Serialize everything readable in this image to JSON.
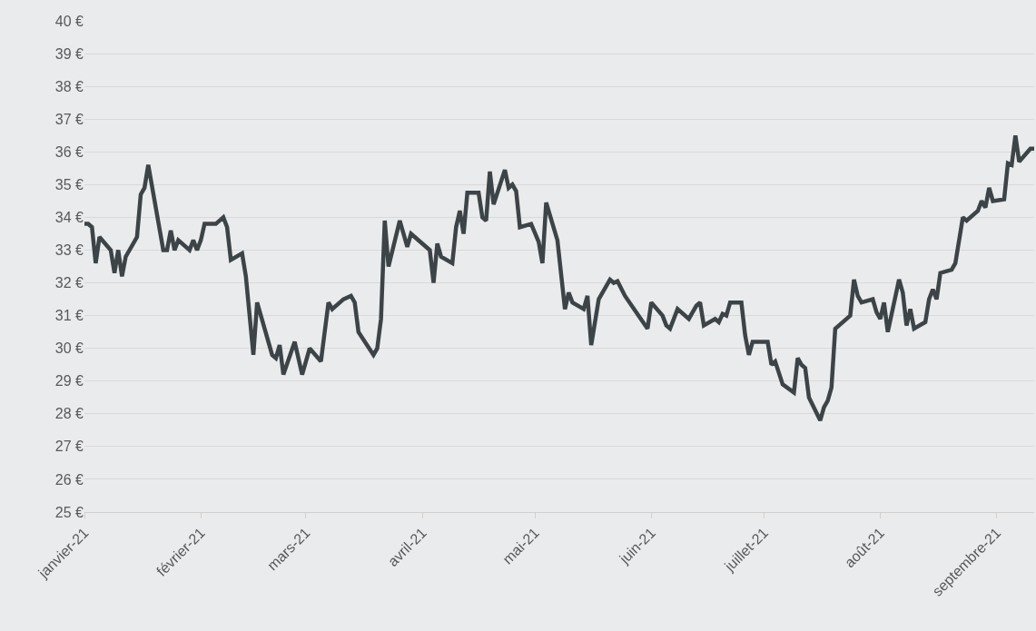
{
  "chart_data": {
    "type": "line",
    "x": [
      "2021-01-01",
      "2021-01-02",
      "2021-01-03",
      "2021-01-04",
      "2021-01-05",
      "2021-01-08",
      "2021-01-09",
      "2021-01-10",
      "2021-01-11",
      "2021-01-12",
      "2021-01-15",
      "2021-01-16",
      "2021-01-17",
      "2021-01-18",
      "2021-01-22",
      "2021-01-23",
      "2021-01-24",
      "2021-01-25",
      "2021-01-26",
      "2021-01-29",
      "2021-01-30",
      "2021-01-31",
      "2021-02-01",
      "2021-02-02",
      "2021-02-05",
      "2021-02-07",
      "2021-02-08",
      "2021-02-09",
      "2021-02-12",
      "2021-02-13",
      "2021-02-15",
      "2021-02-16",
      "2021-02-20",
      "2021-02-21",
      "2021-02-22",
      "2021-02-23",
      "2021-02-26",
      "2021-02-28",
      "2021-03-02",
      "2021-03-05",
      "2021-03-07",
      "2021-03-08",
      "2021-03-11",
      "2021-03-13",
      "2021-03-14",
      "2021-03-15",
      "2021-03-19",
      "2021-03-20",
      "2021-03-21",
      "2021-03-22",
      "2021-03-23",
      "2021-03-26",
      "2021-03-28",
      "2021-03-29",
      "2021-04-03",
      "2021-04-04",
      "2021-04-05",
      "2021-04-06",
      "2021-04-09",
      "2021-04-10",
      "2021-04-11",
      "2021-04-12",
      "2021-04-13",
      "2021-04-16",
      "2021-04-17",
      "2021-04-18",
      "2021-04-19",
      "2021-04-20",
      "2021-04-23",
      "2021-04-24",
      "2021-04-25",
      "2021-04-26",
      "2021-04-27",
      "2021-04-30",
      "2021-05-02",
      "2021-05-03",
      "2021-05-04",
      "2021-05-07",
      "2021-05-09",
      "2021-05-10",
      "2021-05-11",
      "2021-05-14",
      "2021-05-15",
      "2021-05-16",
      "2021-05-18",
      "2021-05-21",
      "2021-05-22",
      "2021-05-23",
      "2021-05-25",
      "2021-05-28",
      "2021-05-31",
      "2021-06-01",
      "2021-06-04",
      "2021-06-05",
      "2021-06-06",
      "2021-06-08",
      "2021-06-11",
      "2021-06-13",
      "2021-06-14",
      "2021-06-15",
      "2021-06-18",
      "2021-06-19",
      "2021-06-20",
      "2021-06-21",
      "2021-06-22",
      "2021-06-25",
      "2021-06-26",
      "2021-06-27",
      "2021-06-28",
      "2021-07-02",
      "2021-07-03",
      "2021-07-04",
      "2021-07-06",
      "2021-07-09",
      "2021-07-10",
      "2021-07-11",
      "2021-07-12",
      "2021-07-13",
      "2021-07-16",
      "2021-07-17",
      "2021-07-18",
      "2021-07-19",
      "2021-07-20",
      "2021-07-24",
      "2021-07-25",
      "2021-07-26",
      "2021-07-27",
      "2021-07-30",
      "2021-07-31",
      "2021-08-01",
      "2021-08-02",
      "2021-08-03",
      "2021-08-06",
      "2021-08-07",
      "2021-08-08",
      "2021-08-09",
      "2021-08-10",
      "2021-08-13",
      "2021-08-14",
      "2021-08-15",
      "2021-08-16",
      "2021-08-17",
      "2021-08-20",
      "2021-08-21",
      "2021-08-23",
      "2021-08-24",
      "2021-08-27",
      "2021-08-28",
      "2021-08-29",
      "2021-08-30",
      "2021-08-31",
      "2021-09-03",
      "2021-09-04",
      "2021-09-05",
      "2021-09-06",
      "2021-09-07",
      "2021-09-10",
      "2021-09-11"
    ],
    "series": [
      {
        "color": "#3d4447",
        "values": [
          33.8,
          33.8,
          33.7,
          32.6,
          33.4,
          33.0,
          32.3,
          33.0,
          32.2,
          32.8,
          33.4,
          34.7,
          34.9,
          35.6,
          33.0,
          33.0,
          33.6,
          33.0,
          33.3,
          33.0,
          33.3,
          33.0,
          33.3,
          33.8,
          33.8,
          34.0,
          33.7,
          32.7,
          32.9,
          32.2,
          29.8,
          31.4,
          29.8,
          29.7,
          30.1,
          29.2,
          30.2,
          29.2,
          30.0,
          29.6,
          31.4,
          31.2,
          31.5,
          31.6,
          31.4,
          30.5,
          29.8,
          30.0,
          30.9,
          33.9,
          32.5,
          33.9,
          33.1,
          33.5,
          33.0,
          32.0,
          33.2,
          32.8,
          32.6,
          33.7,
          34.2,
          33.5,
          34.75,
          34.75,
          34.0,
          33.9,
          35.4,
          34.4,
          35.45,
          34.9,
          35.0,
          34.8,
          33.7,
          33.8,
          33.25,
          32.6,
          34.45,
          33.3,
          31.2,
          31.7,
          31.4,
          31.2,
          31.6,
          30.1,
          31.5,
          32.1,
          32.0,
          32.05,
          31.6,
          31.1,
          30.6,
          31.4,
          31.0,
          30.7,
          30.6,
          31.2,
          30.9,
          31.3,
          31.4,
          30.7,
          30.9,
          30.8,
          31.05,
          31.0,
          31.4,
          31.4,
          30.4,
          29.8,
          30.2,
          30.2,
          29.5,
          29.6,
          28.9,
          28.65,
          29.7,
          29.5,
          29.4,
          28.5,
          27.8,
          28.2,
          28.4,
          28.8,
          30.6,
          31.0,
          32.1,
          31.6,
          31.4,
          31.5,
          31.1,
          30.9,
          31.4,
          30.5,
          32.1,
          31.7,
          30.7,
          31.2,
          30.6,
          30.8,
          31.5,
          31.8,
          31.5,
          32.3,
          32.4,
          32.6,
          34.0,
          33.9,
          34.2,
          34.5,
          34.3,
          34.9,
          34.5,
          34.55,
          35.65,
          35.6,
          36.5,
          35.7,
          36.1,
          36.1
        ]
      }
    ],
    "xlim": [
      "2021-01-01",
      "2021-09-11"
    ],
    "xticks": [
      {
        "value": "2021-01-01",
        "label": "janvier-21"
      },
      {
        "value": "2021-02-01",
        "label": "février-21"
      },
      {
        "value": "2021-03-01",
        "label": "mars-21"
      },
      {
        "value": "2021-04-01",
        "label": "avril-21"
      },
      {
        "value": "2021-05-01",
        "label": "mai-21"
      },
      {
        "value": "2021-06-01",
        "label": "juin-21"
      },
      {
        "value": "2021-07-01",
        "label": "juillet-21"
      },
      {
        "value": "2021-08-01",
        "label": "août-21"
      },
      {
        "value": "2021-09-01",
        "label": "septembre-21"
      }
    ],
    "ylim": [
      25,
      40
    ],
    "yticks": [
      {
        "value": 25,
        "label": "25 €"
      },
      {
        "value": 26,
        "label": "26 €"
      },
      {
        "value": 27,
        "label": "27 €"
      },
      {
        "value": 28,
        "label": "28 €"
      },
      {
        "value": 29,
        "label": "29 €"
      },
      {
        "value": 30,
        "label": "30 €"
      },
      {
        "value": 31,
        "label": "31 €"
      },
      {
        "value": 32,
        "label": "32 €"
      },
      {
        "value": 33,
        "label": "33 €"
      },
      {
        "value": 34,
        "label": "34 €"
      },
      {
        "value": 35,
        "label": "35 €"
      },
      {
        "value": 36,
        "label": "36 €"
      },
      {
        "value": 37,
        "label": "37 €"
      },
      {
        "value": 38,
        "label": "38 €"
      },
      {
        "value": 39,
        "label": "39 €"
      },
      {
        "value": 40,
        "label": "40 €"
      }
    ],
    "grid": "y",
    "marker": "none",
    "line_style": "solid"
  }
}
